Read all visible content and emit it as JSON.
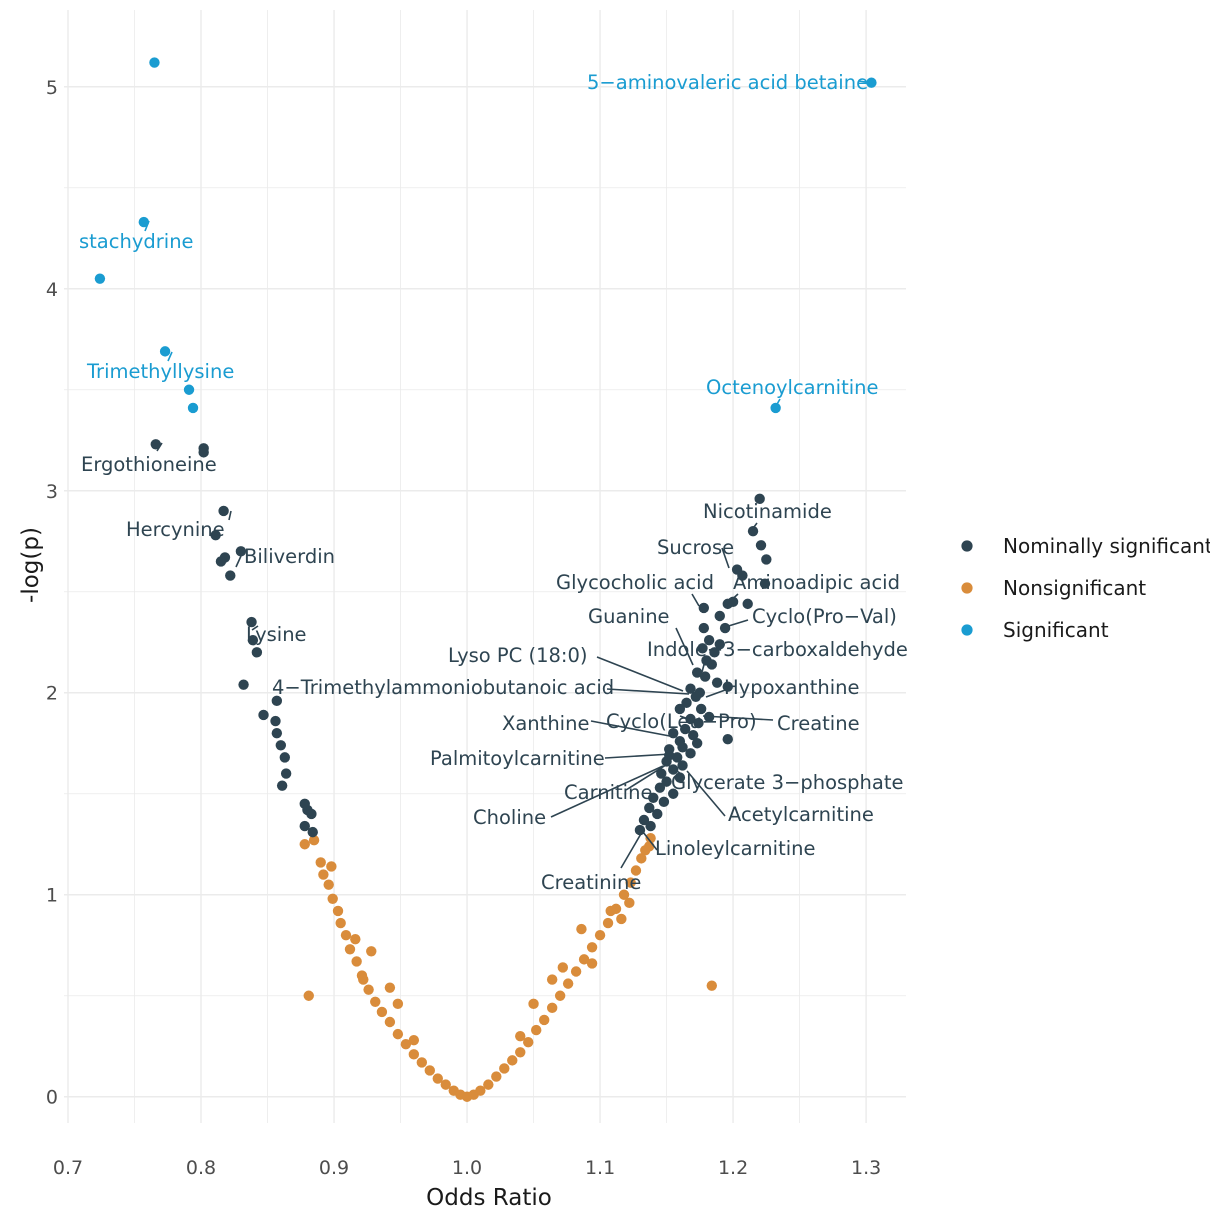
{
  "chart_data": {
    "type": "scatter",
    "xlabel": "Odds Ratio",
    "ylabel": "-log(p)",
    "xlim": [
      0.697,
      1.33
    ],
    "ylim": [
      -0.13,
      5.38
    ],
    "x_ticks": [
      "0.7",
      "0.8",
      "0.9",
      "1.0",
      "1.1",
      "1.2",
      "1.3"
    ],
    "y_ticks": [
      "0",
      "1",
      "2",
      "3",
      "4",
      "5"
    ],
    "grid": true,
    "legend_position": "right",
    "colors": {
      "Nominally significant": "#2e4451",
      "Nonsignificant": "#d98c3b",
      "Significant": "#1a9cd1"
    },
    "series": [
      {
        "name": "Significant",
        "points": [
          [
            0.765,
            5.12
          ],
          [
            1.304,
            5.02
          ],
          [
            0.757,
            4.33
          ],
          [
            0.724,
            4.05
          ],
          [
            0.773,
            3.69
          ],
          [
            0.791,
            3.5
          ],
          [
            0.794,
            3.41
          ],
          [
            1.232,
            3.41
          ]
        ]
      },
      {
        "name": "Nominally significant",
        "points": [
          [
            0.766,
            3.23
          ],
          [
            0.802,
            3.21
          ],
          [
            0.802,
            3.19
          ],
          [
            0.817,
            2.9
          ],
          [
            0.83,
            2.7
          ],
          [
            0.811,
            2.78
          ],
          [
            0.818,
            2.67
          ],
          [
            0.815,
            2.65
          ],
          [
            0.822,
            2.58
          ],
          [
            0.838,
            2.35
          ],
          [
            0.839,
            2.26
          ],
          [
            0.842,
            2.2
          ],
          [
            0.832,
            2.04
          ],
          [
            0.857,
            1.96
          ],
          [
            0.847,
            1.89
          ],
          [
            0.856,
            1.86
          ],
          [
            0.857,
            1.8
          ],
          [
            0.86,
            1.74
          ],
          [
            0.863,
            1.68
          ],
          [
            0.864,
            1.6
          ],
          [
            0.861,
            1.54
          ],
          [
            0.878,
            1.45
          ],
          [
            0.88,
            1.42
          ],
          [
            0.883,
            1.4
          ],
          [
            0.878,
            1.34
          ],
          [
            0.884,
            1.31
          ],
          [
            1.22,
            2.96
          ],
          [
            1.215,
            2.8
          ],
          [
            1.221,
            2.73
          ],
          [
            1.225,
            2.66
          ],
          [
            1.203,
            2.61
          ],
          [
            1.207,
            2.58
          ],
          [
            1.224,
            2.54
          ],
          [
            1.2,
            2.45
          ],
          [
            1.196,
            2.44
          ],
          [
            1.211,
            2.44
          ],
          [
            1.178,
            2.42
          ],
          [
            1.19,
            2.38
          ],
          [
            1.194,
            2.32
          ],
          [
            1.178,
            2.32
          ],
          [
            1.182,
            2.26
          ],
          [
            1.19,
            2.24
          ],
          [
            1.177,
            2.22
          ],
          [
            1.186,
            2.2
          ],
          [
            1.18,
            2.16
          ],
          [
            1.184,
            2.14
          ],
          [
            1.173,
            2.1
          ],
          [
            1.179,
            2.08
          ],
          [
            1.188,
            2.05
          ],
          [
            1.196,
            2.03
          ],
          [
            1.168,
            2.02
          ],
          [
            1.175,
            2.0
          ],
          [
            1.172,
            1.98
          ],
          [
            1.165,
            1.95
          ],
          [
            1.16,
            1.92
          ],
          [
            1.182,
            1.88
          ],
          [
            1.168,
            1.87
          ],
          [
            1.174,
            1.85
          ],
          [
            1.164,
            1.82
          ],
          [
            1.155,
            1.8
          ],
          [
            1.17,
            1.79
          ],
          [
            1.196,
            1.77
          ],
          [
            1.16,
            1.76
          ],
          [
            1.173,
            1.75
          ],
          [
            1.152,
            1.72
          ],
          [
            1.168,
            1.7
          ],
          [
            1.158,
            1.68
          ],
          [
            1.15,
            1.66
          ],
          [
            1.162,
            1.64
          ],
          [
            1.155,
            1.62
          ],
          [
            1.146,
            1.6
          ],
          [
            1.16,
            1.58
          ],
          [
            1.15,
            1.56
          ],
          [
            1.145,
            1.53
          ],
          [
            1.155,
            1.5
          ],
          [
            1.14,
            1.48
          ],
          [
            1.148,
            1.46
          ],
          [
            1.137,
            1.43
          ],
          [
            1.143,
            1.4
          ],
          [
            1.133,
            1.37
          ],
          [
            1.138,
            1.34
          ],
          [
            1.13,
            1.32
          ],
          [
            1.176,
            1.92
          ],
          [
            1.162,
            1.73
          ],
          [
            1.152,
            1.69
          ]
        ]
      },
      {
        "name": "Nonsignificant",
        "points": [
          [
            0.881,
            0.5
          ],
          [
            1.184,
            0.55
          ],
          [
            0.885,
            1.27
          ],
          [
            0.878,
            1.25
          ],
          [
            1.138,
            1.28
          ],
          [
            1.137,
            1.24
          ],
          [
            0.89,
            1.16
          ],
          [
            0.892,
            1.1
          ],
          [
            0.896,
            1.05
          ],
          [
            0.899,
            0.98
          ],
          [
            0.903,
            0.92
          ],
          [
            0.905,
            0.86
          ],
          [
            0.909,
            0.8
          ],
          [
            0.912,
            0.73
          ],
          [
            0.917,
            0.67
          ],
          [
            0.921,
            0.6
          ],
          [
            0.926,
            0.53
          ],
          [
            0.931,
            0.47
          ],
          [
            0.936,
            0.42
          ],
          [
            0.942,
            0.37
          ],
          [
            0.948,
            0.31
          ],
          [
            0.954,
            0.26
          ],
          [
            0.96,
            0.21
          ],
          [
            0.966,
            0.17
          ],
          [
            0.972,
            0.13
          ],
          [
            0.978,
            0.09
          ],
          [
            0.984,
            0.06
          ],
          [
            0.99,
            0.03
          ],
          [
            0.995,
            0.01
          ],
          [
            1.0,
            0.0
          ],
          [
            1.005,
            0.01
          ],
          [
            1.01,
            0.03
          ],
          [
            1.016,
            0.06
          ],
          [
            1.022,
            0.1
          ],
          [
            1.028,
            0.14
          ],
          [
            1.034,
            0.18
          ],
          [
            1.04,
            0.22
          ],
          [
            1.046,
            0.27
          ],
          [
            1.052,
            0.33
          ],
          [
            1.058,
            0.38
          ],
          [
            1.064,
            0.44
          ],
          [
            1.07,
            0.5
          ],
          [
            1.076,
            0.56
          ],
          [
            1.082,
            0.62
          ],
          [
            1.088,
            0.68
          ],
          [
            1.094,
            0.74
          ],
          [
            1.1,
            0.8
          ],
          [
            1.106,
            0.86
          ],
          [
            1.112,
            0.93
          ],
          [
            1.118,
            1.0
          ],
          [
            1.123,
            1.06
          ],
          [
            1.127,
            1.12
          ],
          [
            1.131,
            1.18
          ],
          [
            1.134,
            1.22
          ],
          [
            0.942,
            0.54
          ],
          [
            1.064,
            0.58
          ],
          [
            1.086,
            0.83
          ],
          [
            0.916,
            0.78
          ],
          [
            0.928,
            0.72
          ],
          [
            1.108,
            0.92
          ],
          [
            0.948,
            0.46
          ],
          [
            1.05,
            0.46
          ],
          [
            0.922,
            0.58
          ],
          [
            1.094,
            0.66
          ],
          [
            1.116,
            0.88
          ],
          [
            0.898,
            1.14
          ],
          [
            1.122,
            0.96
          ],
          [
            0.96,
            0.28
          ],
          [
            1.04,
            0.3
          ],
          [
            1.072,
            0.64
          ]
        ]
      }
    ],
    "annotations": [
      {
        "text": "5−aminovaleric acid betaine",
        "series": "Significant"
      },
      {
        "text": "stachydrine",
        "series": "Significant"
      },
      {
        "text": "Trimethyllysine",
        "series": "Significant"
      },
      {
        "text": "Octenoylcarnitine",
        "series": "Significant"
      },
      {
        "text": "Ergothioneine",
        "series": "Nominally significant"
      },
      {
        "text": "Hercynine",
        "series": "Nominally significant"
      },
      {
        "text": "Biliverdin",
        "series": "Nominally significant"
      },
      {
        "text": "Lysine",
        "series": "Nominally significant"
      },
      {
        "text": "Nicotinamide",
        "series": "Nominally significant"
      },
      {
        "text": "Sucrose",
        "series": "Nominally significant"
      },
      {
        "text": "Glycocholic acid",
        "series": "Nominally significant"
      },
      {
        "text": "Aminoadipic acid",
        "series": "Nominally significant"
      },
      {
        "text": "Guanine",
        "series": "Nominally significant"
      },
      {
        "text": "Cyclo(Pro−Val)",
        "series": "Nominally significant"
      },
      {
        "text": "Indole−3−carboxaldehyde",
        "series": "Nominally significant"
      },
      {
        "text": "Lyso PC (18:0)",
        "series": "Nominally significant"
      },
      {
        "text": "4−Trimethylammoniobutanoic acid",
        "series": "Nominally significant"
      },
      {
        "text": "Hypoxanthine",
        "series": "Nominally significant"
      },
      {
        "text": "Xanthine",
        "series": "Nominally significant"
      },
      {
        "text": "Cyclo(Leu−Pro)",
        "series": "Nominally significant"
      },
      {
        "text": "Creatine",
        "series": "Nominally significant"
      },
      {
        "text": "Palmitoylcarnitine",
        "series": "Nominally significant"
      },
      {
        "text": "Carnitine",
        "series": "Nominally significant"
      },
      {
        "text": "Glycerate 3−phosphate",
        "series": "Nominally significant"
      },
      {
        "text": "Choline",
        "series": "Nominally significant"
      },
      {
        "text": "Acetylcarnitine",
        "series": "Nominally significant"
      },
      {
        "text": "Linoleylcarnitine",
        "series": "Nominally significant"
      },
      {
        "text": "Creatinine",
        "series": "Nominally significant"
      }
    ],
    "legend": [
      "Nominally significant",
      "Nonsignificant",
      "Significant"
    ]
  }
}
